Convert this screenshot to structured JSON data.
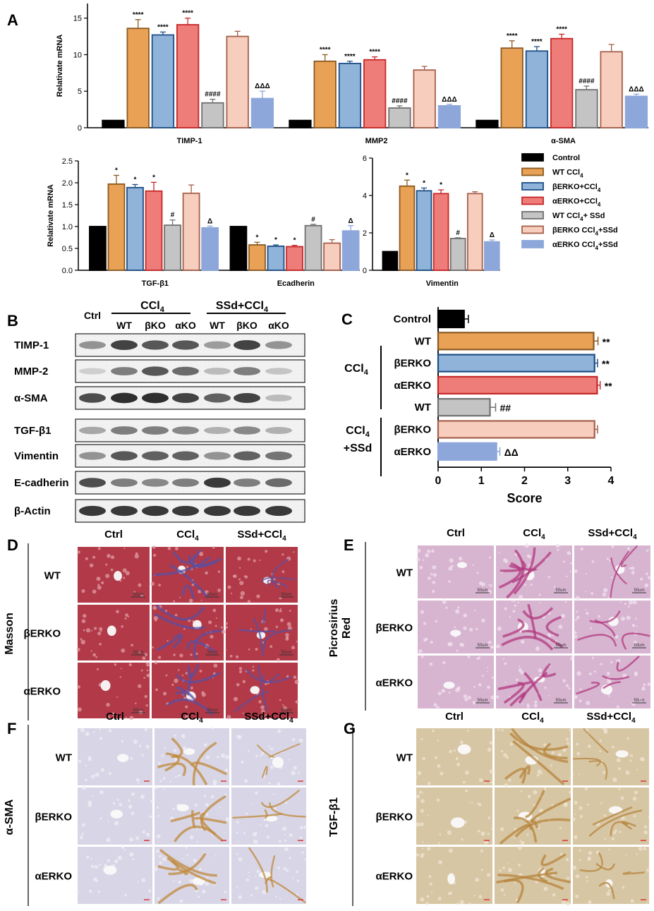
{
  "colors": {
    "Control": "#000000",
    "WT CCl4": "#e8a155",
    "bERKO+CCl4": "#8fb3d9",
    "aERKO+CCl4": "#ee7d7a",
    "WT CCl4+SSd": "#c4c4c4",
    "bERKO CCl4+SSd": "#f7cdbd",
    "aERKO CCl4+SSd": "#8ea7db"
  },
  "stroke_colors": [
    "#000000",
    "#8a5a22",
    "#1e4f86",
    "#c62828",
    "#707070",
    "#a5604b",
    "#8ea7db"
  ],
  "panel_letters": {
    "A": "A",
    "B": "B",
    "C": "C",
    "D": "D",
    "E": "E",
    "F": "F",
    "G": "G"
  },
  "legend": {
    "items": [
      {
        "prefix": "Control",
        "sub": "",
        "suffix": ""
      },
      {
        "prefix": "WT CCl",
        "sub": "4",
        "suffix": ""
      },
      {
        "prefix": "βERKO+CCl",
        "sub": "4",
        "suffix": ""
      },
      {
        "prefix": "αERKO+CCl",
        "sub": "4",
        "suffix": ""
      },
      {
        "prefix": "WT CCl",
        "sub": "4",
        "suffix": "+ SSd"
      },
      {
        "prefix": "βERKO CCl",
        "sub": "4",
        "suffix": "+SSd"
      },
      {
        "prefix": "αERKO CCl",
        "sub": "4",
        "suffix": "+SSd"
      }
    ]
  },
  "chart_data": [
    {
      "type": "bar",
      "panel": "A-top",
      "ylabel": "Relativate mRNA",
      "ylim": [
        0,
        17
      ],
      "yticks": [
        "0",
        "5",
        "10",
        "15"
      ],
      "categories": [
        "TIMP-1",
        "MMP2",
        "α-SMA"
      ],
      "series": [
        {
          "name": "Control",
          "values": [
            1.0,
            1.0,
            1.0
          ],
          "err": [
            0,
            0,
            0
          ],
          "marks": [
            "",
            "",
            ""
          ]
        },
        {
          "name": "WT CCl4",
          "values": [
            13.6,
            9.1,
            10.9
          ],
          "err": [
            1.2,
            0.9,
            1.0
          ],
          "marks": [
            "****",
            "****",
            "****"
          ]
        },
        {
          "name": "βERKO+CCl4",
          "values": [
            12.7,
            8.8,
            10.5
          ],
          "err": [
            0.4,
            0.3,
            0.6
          ],
          "marks": [
            "****",
            "****",
            "****"
          ]
        },
        {
          "name": "αERKO+CCl4",
          "values": [
            14.1,
            9.3,
            12.2
          ],
          "err": [
            0.9,
            0.4,
            0.6
          ],
          "marks": [
            "****",
            "****",
            "****"
          ]
        },
        {
          "name": "WT CCl4+ SSd",
          "values": [
            3.4,
            2.7,
            5.2
          ],
          "err": [
            0.5,
            0.3,
            0.5
          ],
          "marks": [
            "####",
            "####",
            "####"
          ]
        },
        {
          "name": "βERKO CCl4+SSd",
          "values": [
            12.5,
            7.9,
            10.4
          ],
          "err": [
            0.7,
            0.5,
            1.0
          ],
          "marks": [
            "",
            "",
            ""
          ]
        },
        {
          "name": "αERKO CCl4+SSd",
          "values": [
            4.0,
            3.0,
            4.3
          ],
          "err": [
            1.0,
            0.2,
            0.3
          ],
          "marks": [
            "ΔΔΔ",
            "ΔΔΔ",
            "ΔΔΔ"
          ]
        }
      ]
    },
    {
      "type": "bar",
      "panel": "A-bottom-left",
      "ylabel": "Relativate mRNA",
      "ylim": [
        0,
        2.5
      ],
      "yticks": [
        "0.0",
        "0.5",
        "1.0",
        "1.5",
        "2.0",
        "2.5"
      ],
      "categories": [
        "TGF-β1",
        "Ecadherin"
      ],
      "series": [
        {
          "name": "Control",
          "values": [
            1.0,
            1.0
          ],
          "err": [
            0,
            0
          ],
          "marks": [
            "",
            ""
          ]
        },
        {
          "name": "WT CCl4",
          "values": [
            1.97,
            0.58
          ],
          "err": [
            0.2,
            0.06
          ],
          "marks": [
            "*",
            "*"
          ]
        },
        {
          "name": "βERKO+CCl4",
          "values": [
            1.89,
            0.55
          ],
          "err": [
            0.07,
            0.03
          ],
          "marks": [
            "*",
            "*"
          ]
        },
        {
          "name": "αERKO+CCl4",
          "values": [
            1.81,
            0.54
          ],
          "err": [
            0.2,
            0.03
          ],
          "marks": [
            "*",
            "*"
          ]
        },
        {
          "name": "WT CCl4+ SSd",
          "values": [
            1.03,
            1.02
          ],
          "err": [
            0.12,
            0.03
          ],
          "marks": [
            "#",
            "#"
          ]
        },
        {
          "name": "βERKO CCl4+SSd",
          "values": [
            1.76,
            0.62
          ],
          "err": [
            0.19,
            0.08
          ],
          "marks": [
            "",
            ""
          ]
        },
        {
          "name": "αERKO CCl4+SSd",
          "values": [
            0.97,
            0.9
          ],
          "err": [
            0.04,
            0.12
          ],
          "marks": [
            "Δ",
            "Δ"
          ]
        }
      ]
    },
    {
      "type": "bar",
      "panel": "A-bottom-right",
      "ylabel": "",
      "ylim": [
        0,
        6
      ],
      "yticks": [
        "0",
        "2",
        "4",
        "6"
      ],
      "categories": [
        "Vimentin"
      ],
      "series": [
        {
          "name": "Control",
          "values": [
            1.0
          ],
          "err": [
            0
          ],
          "marks": [
            ""
          ]
        },
        {
          "name": "WT CCl4",
          "values": [
            4.5
          ],
          "err": [
            0.32
          ],
          "marks": [
            "*"
          ]
        },
        {
          "name": "βERKO+CCl4",
          "values": [
            4.25
          ],
          "err": [
            0.15
          ],
          "marks": [
            "*"
          ]
        },
        {
          "name": "αERKO+CCl4",
          "values": [
            4.1
          ],
          "err": [
            0.2
          ],
          "marks": [
            "*"
          ]
        },
        {
          "name": "WT CCl4+ SSd",
          "values": [
            1.7
          ],
          "err": [
            0.04
          ],
          "marks": [
            "#"
          ]
        },
        {
          "name": "βERKO CCl4+SSd",
          "values": [
            4.1
          ],
          "err": [
            0.1
          ],
          "marks": [
            ""
          ]
        },
        {
          "name": "αERKO CCl4+SSd",
          "values": [
            1.52
          ],
          "err": [
            0.1
          ],
          "marks": [
            "Δ"
          ]
        }
      ]
    },
    {
      "type": "bar",
      "orientation": "horizontal",
      "panel": "C",
      "xlabel": "Score",
      "xlim": [
        0,
        4
      ],
      "xticks": [
        "0",
        "1",
        "2",
        "3",
        "4"
      ],
      "categories": [
        "Control",
        "WT",
        "βERKO",
        "αERKO",
        "WT",
        "βERKO",
        "αERKO"
      ],
      "values": [
        0.6,
        3.6,
        3.62,
        3.68,
        1.2,
        3.62,
        1.35
      ],
      "err": [
        0.1,
        0.1,
        0.07,
        0.07,
        0.13,
        0.07,
        0.08
      ],
      "marks": [
        "",
        "**",
        "**",
        "**",
        "##",
        "",
        "ΔΔ"
      ],
      "groups": [
        {
          "prefix": "CCl",
          "sub": "4",
          "suffix": ""
        },
        {
          "prefix": "CCl",
          "sub": "4",
          "suffix": "+SSd"
        }
      ]
    }
  ],
  "blot": {
    "header": {
      "ctrl": "Ctrl",
      "ccl": "CCl",
      "ccl_sub": "4",
      "ssd": "SSd+CCl",
      "ssd_sub": "4",
      "lanes": [
        "WT",
        "βKO",
        "αKO",
        "WT",
        "βKO",
        "αKO"
      ]
    },
    "rows": [
      {
        "label": "TIMP-1",
        "intensity": [
          0.45,
          0.85,
          0.75,
          0.75,
          0.4,
          0.85,
          0.45
        ]
      },
      {
        "label": "MMP-2",
        "intensity": [
          0.15,
          0.55,
          0.75,
          0.65,
          0.25,
          0.55,
          0.2
        ]
      },
      {
        "label": "α-SMA",
        "intensity": [
          0.8,
          0.95,
          0.95,
          0.85,
          0.7,
          0.85,
          0.25
        ]
      },
      {
        "label": "TGF-β1",
        "intensity": [
          0.35,
          0.55,
          0.55,
          0.5,
          0.3,
          0.5,
          0.3
        ]
      },
      {
        "label": "Vimentin",
        "intensity": [
          0.45,
          0.75,
          0.7,
          0.7,
          0.45,
          0.7,
          0.6
        ]
      },
      {
        "label": "E-cadherin",
        "intensity": [
          0.8,
          0.55,
          0.5,
          0.55,
          0.9,
          0.55,
          0.65
        ]
      },
      {
        "label": "β-Actin",
        "intensity": [
          0.9,
          0.9,
          0.9,
          0.9,
          0.9,
          0.9,
          0.9
        ]
      }
    ]
  },
  "histology": {
    "columns": [
      {
        "prefix": "Ctrl",
        "sub": ""
      },
      {
        "prefix": "CCl",
        "sub": "4"
      },
      {
        "prefix": "SSd+CCl",
        "sub": "4"
      }
    ],
    "rows": [
      "WT",
      "βERKO",
      "αERKO"
    ],
    "panels": [
      {
        "letter": "D",
        "side_label": [
          "Masson"
        ],
        "scale_bar": "50um",
        "base": "#b23a48",
        "light": "#e2a2aa",
        "fibrosis": "#5b4fa0"
      },
      {
        "letter": "E",
        "side_label": [
          "Picrosirius",
          "Red"
        ],
        "scale_bar": "50um",
        "base": "#d7b4d0",
        "light": "#f2e4ef",
        "fibrosis": "#b2387f"
      },
      {
        "letter": "F",
        "side_label": [
          "α-SMA"
        ],
        "scale_bar": "",
        "base": "#d8d6e6",
        "light": "#f1f0f5",
        "fibrosis": "#c08a3e"
      },
      {
        "letter": "G",
        "side_label": [
          "TGF-β1"
        ],
        "scale_bar": "",
        "base": "#d7c6a4",
        "light": "#efe6d3",
        "fibrosis": "#b7843c"
      }
    ]
  }
}
